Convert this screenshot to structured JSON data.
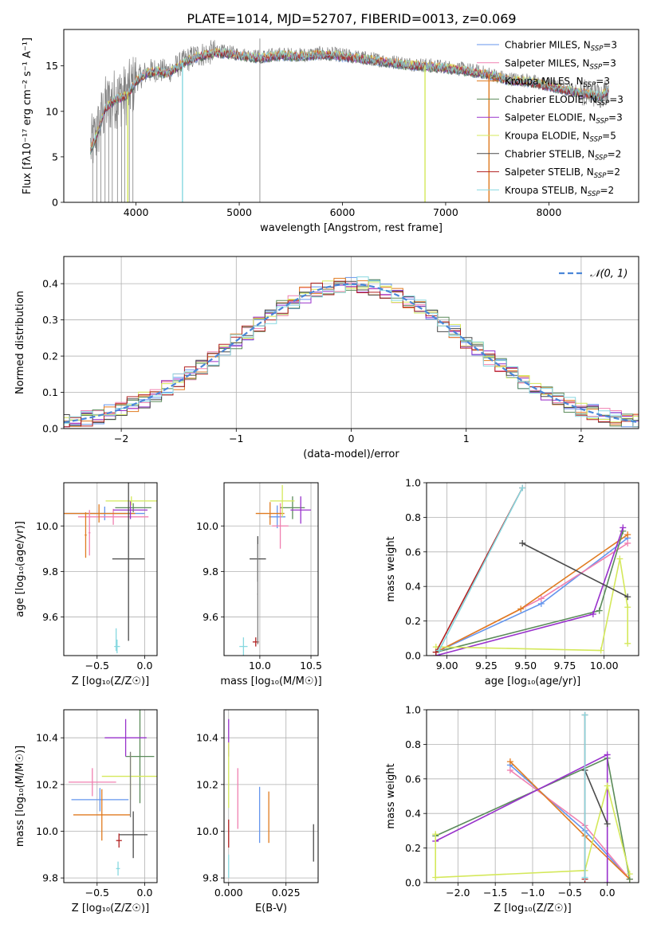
{
  "figure": {
    "title": "PLATE=1014, MJD=52707, FIBERID=0013, z=0.069"
  },
  "chart_data": [
    {
      "id": "spectrum",
      "type": "line",
      "xlabel": "wavelength [Angstrom, rest frame]",
      "ylabel": "Flux [fλ10⁻¹⁷ erg cm⁻² s⁻¹ A⁻¹]",
      "xlim": [
        3300,
        8870
      ],
      "ylim": [
        0,
        19
      ],
      "xticks": [
        4000,
        5000,
        6000,
        7000,
        8000
      ],
      "yticks": [
        0,
        5,
        10,
        15
      ],
      "grid": false,
      "legend_position": "right",
      "legend": [
        {
          "label": "Chabrier MILES, N",
          "sub": "SSP",
          "tail": "=3",
          "color": "#6495ed"
        },
        {
          "label": "Salpeter MILES, N",
          "sub": "SSP",
          "tail": "=3",
          "color": "#f080b0"
        },
        {
          "label": "Kroupa MILES, N",
          "sub": "SSP",
          "tail": "=3",
          "color": "#e07b20"
        },
        {
          "label": "Chabrier ELODIE, N",
          "sub": "SSP",
          "tail": "=3",
          "color": "#5b8c5a"
        },
        {
          "label": "Salpeter ELODIE, N",
          "sub": "SSP",
          "tail": "=3",
          "color": "#9932cc"
        },
        {
          "label": "Kroupa ELODIE, N",
          "sub": "SSP",
          "tail": "=5",
          "color": "#d4e85a"
        },
        {
          "label": "Chabrier STELIB, N",
          "sub": "SSP",
          "tail": "=2",
          "color": "#4a4a4a"
        },
        {
          "label": "Salpeter STELIB, N",
          "sub": "SSP",
          "tail": "=2",
          "color": "#b22222"
        },
        {
          "label": "Kroupa STELIB, N",
          "sub": "SSP",
          "tail": "=2",
          "color": "#87d8e0"
        }
      ],
      "data_continuum": [
        [
          3560,
          6
        ],
        [
          3620,
          7.5
        ],
        [
          3700,
          10.5
        ],
        [
          3800,
          11.5
        ],
        [
          3900,
          11.8
        ],
        [
          3950,
          12.5
        ],
        [
          4000,
          13.5
        ],
        [
          4100,
          14.3
        ],
        [
          4200,
          14.6
        ],
        [
          4300,
          14.3
        ],
        [
          4400,
          15.0
        ],
        [
          4500,
          15.7
        ],
        [
          4600,
          16.2
        ],
        [
          4700,
          16.4
        ],
        [
          4800,
          16.6
        ],
        [
          4900,
          16.5
        ],
        [
          5000,
          16.3
        ],
        [
          5200,
          16.0
        ],
        [
          5400,
          16.3
        ],
        [
          5600,
          16.2
        ],
        [
          5800,
          16.4
        ],
        [
          6000,
          16.2
        ],
        [
          6200,
          15.9
        ],
        [
          6400,
          15.6
        ],
        [
          6600,
          15.3
        ],
        [
          6800,
          15.1
        ],
        [
          7000,
          14.9
        ],
        [
          7200,
          14.6
        ],
        [
          7400,
          14.2
        ],
        [
          7600,
          13.6
        ],
        [
          7800,
          13.4
        ],
        [
          8000,
          12.9
        ],
        [
          8200,
          12.4
        ],
        [
          8400,
          12.0
        ],
        [
          8500,
          11.8
        ],
        [
          8580,
          12.5
        ]
      ],
      "model_dropouts": [
        {
          "x": 3920,
          "color": "#d4e85a"
        },
        {
          "x": 4450,
          "color": "#87d8e0"
        },
        {
          "x": 6800,
          "color": "#d4e85a"
        },
        {
          "x": 7420,
          "color": "#e07b20"
        }
      ],
      "noise_spikes": [
        3580,
        3620,
        3660,
        3700,
        3735,
        3770,
        3820,
        3860,
        3890,
        3935,
        3970,
        5200
      ]
    },
    {
      "id": "residuals",
      "type": "step",
      "xlabel": "(data-model)/error",
      "ylabel": "Normed distribution",
      "xlim": [
        -2.5,
        2.5
      ],
      "ylim": [
        0,
        0.475
      ],
      "xticks": [
        -2,
        -1,
        0,
        1,
        2
      ],
      "yticks": [
        0.0,
        0.1,
        0.2,
        0.3,
        0.4
      ],
      "grid": true,
      "legend_label": "𝒩(0, 1)",
      "legend_position": "upper right",
      "gaussian_color": "#4a86d8"
    },
    {
      "id": "age_vs_Z",
      "type": "errorbar",
      "xlabel": "Z [log₁₀(Z/Z☉)]",
      "ylabel": "age  [log₁₀(age/yr)]",
      "xlim": [
        -0.85,
        0.13
      ],
      "ylim": [
        9.43,
        10.19
      ],
      "xticks": [
        -0.5,
        0.0
      ],
      "yticks": [
        9.6,
        9.8,
        10.0
      ],
      "grid": true,
      "points": [
        {
          "color": "#6495ed",
          "x": -0.42,
          "xerr": 0.42,
          "y": 10.055,
          "yerr": 0.03
        },
        {
          "color": "#f080b0",
          "x": -0.33,
          "xerr": 0.37,
          "y": 10.04,
          "yerr": 0.035
        },
        {
          "color": "#e07b20",
          "x": -0.48,
          "xerr": 0.38,
          "y": 10.055,
          "yerr": 0.04
        },
        {
          "color": "#e07b20",
          "x": -0.62,
          "xerr": 0.01,
          "y": 9.96,
          "yerr": 0.1
        },
        {
          "color": "#f080b0",
          "x": -0.58,
          "xerr": 0.01,
          "y": 9.97,
          "yerr": 0.1
        },
        {
          "color": "#5b8c5a",
          "x": -0.12,
          "xerr": 0.19,
          "y": 10.08,
          "yerr": 0.02
        },
        {
          "color": "#9932cc",
          "x": -0.15,
          "xerr": 0.18,
          "y": 10.07,
          "yerr": 0.04
        },
        {
          "color": "#d4e85a",
          "x": -0.14,
          "xerr": 0.27,
          "y": 10.11,
          "yerr": 0.02
        },
        {
          "color": "#4a4a4a",
          "x": -0.17,
          "xerr": 0.17,
          "y": 9.855,
          "yerr": 0.36
        },
        {
          "color": "#87d8e0",
          "x": -0.29,
          "xerr": 0.03,
          "y": 9.47,
          "yerr": 0.03
        },
        {
          "color": "#87d8e0",
          "x": -0.3,
          "xerr": 0.005,
          "y": 9.5,
          "yerr": 0.05
        }
      ]
    },
    {
      "id": "age_vs_mass",
      "type": "errorbar",
      "xlabel": "mass [log₁₀(M/M☉)]",
      "ylabel": "",
      "xlim": [
        9.65,
        10.57
      ],
      "ylim": [
        9.43,
        10.19
      ],
      "xticks": [
        10.0,
        10.5
      ],
      "yticks": [
        9.6,
        9.8,
        10.0
      ],
      "grid": true,
      "points": [
        {
          "color": "#6495ed",
          "x": 10.17,
          "xerr": 0.08,
          "y": 10.04,
          "yerr": 0.05
        },
        {
          "color": "#f080b0",
          "x": 10.2,
          "xerr": 0.08,
          "y": 10.0,
          "yerr": 0.1
        },
        {
          "color": "#e07b20",
          "x": 10.1,
          "xerr": 0.14,
          "y": 10.055,
          "yerr": 0.05
        },
        {
          "color": "#5b8c5a",
          "x": 10.32,
          "xerr": 0.12,
          "y": 10.08,
          "yerr": 0.05
        },
        {
          "color": "#9932cc",
          "x": 10.4,
          "xerr": 0.1,
          "y": 10.07,
          "yerr": 0.06
        },
        {
          "color": "#d4e85a",
          "x": 10.22,
          "xerr": 0.12,
          "y": 10.11,
          "yerr": 0.07
        },
        {
          "color": "#4a4a4a",
          "x": 9.98,
          "xerr": 0.08,
          "y": 9.855,
          "yerr": 0.1
        },
        {
          "color": "#b22222",
          "x": 9.96,
          "xerr": 0.03,
          "y": 9.49,
          "yerr": 0.02
        },
        {
          "color": "#87d8e0",
          "x": 9.84,
          "xerr": 0.04,
          "y": 9.47,
          "yerr": 0.04
        },
        {
          "color": "#808080",
          "x": 9.98,
          "xerr": 0.005,
          "y": 9.7,
          "yerr": 0.22
        }
      ]
    },
    {
      "id": "weight_vs_age",
      "type": "line",
      "xlabel": "age  [log₁₀(age/yr)]",
      "ylabel": "mass weight",
      "xlim": [
        8.87,
        10.22
      ],
      "ylim": [
        0,
        1.0
      ],
      "xticks": [
        9.0,
        9.25,
        9.5,
        9.75,
        10.0
      ],
      "yticks": [
        0.0,
        0.2,
        0.4,
        0.6,
        0.8,
        1.0
      ],
      "grid": true,
      "series": [
        {
          "color": "#6495ed",
          "x": [
            8.93,
            9.6,
            10.15
          ],
          "y": [
            0.02,
            0.3,
            0.68
          ]
        },
        {
          "color": "#f080b0",
          "x": [
            8.93,
            9.6,
            10.15
          ],
          "y": [
            0.02,
            0.33,
            0.65
          ]
        },
        {
          "color": "#e07b20",
          "x": [
            8.93,
            9.47,
            10.15
          ],
          "y": [
            0.02,
            0.27,
            0.7
          ]
        },
        {
          "color": "#5b8c5a",
          "x": [
            8.93,
            9.97,
            10.12
          ],
          "y": [
            0.02,
            0.26,
            0.72
          ]
        },
        {
          "color": "#9932cc",
          "x": [
            8.93,
            9.93,
            10.12
          ],
          "y": [
            0.0,
            0.24,
            0.74
          ]
        },
        {
          "color": "#d4e85a",
          "x": [
            8.93,
            9.98,
            10.1,
            10.15,
            10.15
          ],
          "y": [
            0.05,
            0.03,
            0.56,
            0.28,
            0.07
          ]
        },
        {
          "color": "#4a4a4a",
          "x": [
            9.48,
            10.15
          ],
          "y": [
            0.65,
            0.34
          ]
        },
        {
          "color": "#b22222",
          "x": [
            8.93,
            9.48
          ],
          "y": [
            0.02,
            0.97
          ]
        },
        {
          "color": "#87d8e0",
          "x": [
            8.95,
            9.48
          ],
          "y": [
            0.03,
            0.97
          ]
        }
      ]
    },
    {
      "id": "mass_vs_Z",
      "type": "errorbar",
      "xlabel": "Z [log₁₀(Z/Z☉)]",
      "ylabel": "mass [log₁₀(M/M☉)]",
      "xlim": [
        -0.85,
        0.13
      ],
      "ylim": [
        9.78,
        10.52
      ],
      "xticks": [
        -0.5,
        0.0
      ],
      "yticks": [
        9.8,
        10.0,
        10.2,
        10.4
      ],
      "grid": true,
      "points": [
        {
          "color": "#6495ed",
          "x": -0.47,
          "xerr": 0.3,
          "y": 10.135,
          "yerr": 0.05
        },
        {
          "color": "#f080b0",
          "x": -0.55,
          "xerr": 0.25,
          "y": 10.21,
          "yerr": 0.06
        },
        {
          "color": "#e07b20",
          "x": -0.45,
          "xerr": 0.3,
          "y": 10.07,
          "yerr": 0.11
        },
        {
          "color": "#5b8c5a",
          "x": -0.05,
          "xerr": 0.15,
          "y": 10.32,
          "yerr": 0.2
        },
        {
          "color": "#9932cc",
          "x": -0.2,
          "xerr": 0.22,
          "y": 10.4,
          "yerr": 0.08
        },
        {
          "color": "#d4e85a",
          "x": -0.15,
          "xerr": 0.3,
          "y": 10.235,
          "yerr": 0.1
        },
        {
          "color": "#4a4a4a",
          "x": -0.12,
          "xerr": 0.15,
          "y": 9.985,
          "yerr": 0.1
        },
        {
          "color": "#b22222",
          "x": -0.27,
          "xerr": 0.03,
          "y": 9.96,
          "yerr": 0.03
        },
        {
          "color": "#87d8e0",
          "x": -0.28,
          "xerr": 0.02,
          "y": 9.84,
          "yerr": 0.03
        },
        {
          "color": "#808080",
          "x": -0.15,
          "xerr": 0.005,
          "y": 10.2,
          "yerr": 0.14
        }
      ]
    },
    {
      "id": "mass_vs_ebv",
      "type": "errorbar",
      "xlabel": "E(B-V)",
      "ylabel": "",
      "xlim": [
        -0.002,
        0.039
      ],
      "ylim": [
        9.78,
        10.52
      ],
      "xticks": [
        0.0,
        0.025
      ],
      "yticks": [
        9.8,
        10.0,
        10.2,
        10.4
      ],
      "grid": true,
      "points": [
        {
          "color": "#9932cc",
          "x": 0.0,
          "xerr": 0.0,
          "y": 10.4,
          "yerr": 0.08
        },
        {
          "color": "#d4e85a",
          "x": 0.0,
          "xerr": 0.0,
          "y": 10.24,
          "yerr": 0.14
        },
        {
          "color": "#b22222",
          "x": 0.0,
          "xerr": 0.0,
          "y": 9.99,
          "yerr": 0.06
        },
        {
          "color": "#87d8e0",
          "x": 0.0,
          "xerr": 0.0,
          "y": 9.85,
          "yerr": 0.05
        },
        {
          "color": "#f080b0",
          "x": 0.004,
          "xerr": 0.0,
          "y": 10.14,
          "yerr": 0.13
        },
        {
          "color": "#6495ed",
          "x": 0.0135,
          "xerr": 0.0,
          "y": 10.07,
          "yerr": 0.12
        },
        {
          "color": "#e07b20",
          "x": 0.0175,
          "xerr": 0.0,
          "y": 10.06,
          "yerr": 0.11
        },
        {
          "color": "#4a4a4a",
          "x": 0.037,
          "xerr": 0.0,
          "y": 9.95,
          "yerr": 0.08
        }
      ]
    },
    {
      "id": "weight_vs_Z",
      "type": "line",
      "xlabel": "Z [log₁₀(Z/Z☉)]",
      "ylabel": "mass weight",
      "xlim": [
        -2.42,
        0.42
      ],
      "ylim": [
        0,
        1.0
      ],
      "xticks": [
        -2.0,
        -1.5,
        -1.0,
        -0.5,
        0.0
      ],
      "yticks": [
        0.0,
        0.2,
        0.4,
        0.6,
        0.8,
        1.0
      ],
      "grid": true,
      "series": [
        {
          "color": "#6495ed",
          "x": [
            -1.3,
            -0.3,
            0.3
          ],
          "y": [
            0.68,
            0.3,
            0.02
          ]
        },
        {
          "color": "#f080b0",
          "x": [
            -1.3,
            -0.3,
            0.3
          ],
          "y": [
            0.65,
            0.33,
            0.02
          ]
        },
        {
          "color": "#e07b20",
          "x": [
            -1.3,
            -0.3,
            0.3
          ],
          "y": [
            0.7,
            0.27,
            0.02
          ]
        },
        {
          "color": "#5b8c5a",
          "x": [
            -2.3,
            0.0,
            0.3
          ],
          "y": [
            0.27,
            0.72,
            0.02
          ]
        },
        {
          "color": "#9932cc",
          "x": [
            -2.3,
            0.0,
            0.0
          ],
          "y": [
            0.24,
            0.74,
            0.0
          ]
        },
        {
          "color": "#d4e85a",
          "x": [
            -2.3,
            -2.3,
            -0.3,
            0.0,
            0.3
          ],
          "y": [
            0.28,
            0.03,
            0.07,
            0.56,
            0.05
          ]
        },
        {
          "color": "#4a4a4a",
          "x": [
            -0.3,
            0.0
          ],
          "y": [
            0.65,
            0.34
          ]
        },
        {
          "color": "#b22222",
          "x": [
            -0.3,
            -0.3
          ],
          "y": [
            0.02,
            0.97
          ]
        },
        {
          "color": "#87d8e0",
          "x": [
            -0.3,
            -0.3
          ],
          "y": [
            0.03,
            0.97
          ]
        }
      ]
    }
  ]
}
